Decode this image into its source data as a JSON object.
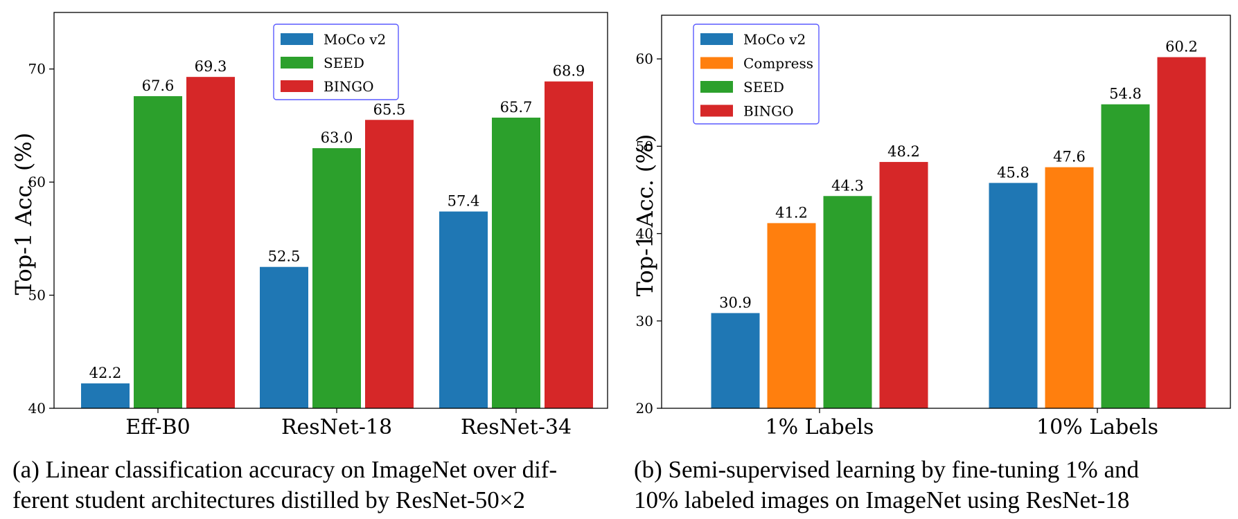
{
  "chart_data": [
    {
      "type": "bar",
      "panel": "a",
      "categories": [
        "Eff-B0",
        "ResNet-18",
        "ResNet-34"
      ],
      "series": [
        {
          "name": "MoCo v2",
          "color": "#1f77b4",
          "values": [
            42.2,
            52.5,
            57.4
          ],
          "labels": [
            "42.2",
            "52.5",
            "57.4"
          ]
        },
        {
          "name": "SEED",
          "color": "#2ca02c",
          "values": [
            67.6,
            63.0,
            65.7
          ],
          "labels": [
            "67.6",
            "63.0",
            "65.7"
          ]
        },
        {
          "name": "BINGO",
          "color": "#d62728",
          "values": [
            69.3,
            65.5,
            68.9
          ],
          "labels": [
            "69.3",
            "65.5",
            "68.9"
          ]
        }
      ],
      "title": "",
      "xlabel": "",
      "ylabel": "Top-1 Acc. (%)",
      "ylim": [
        40,
        75
      ],
      "yticks": [
        40,
        50,
        60,
        70
      ],
      "legend": "top-center",
      "grid": false
    },
    {
      "type": "bar",
      "panel": "b",
      "categories": [
        "1% Labels",
        "10% Labels"
      ],
      "series": [
        {
          "name": "MoCo v2",
          "color": "#1f77b4",
          "values": [
            30.9,
            45.8
          ],
          "labels": [
            "30.9",
            "45.8"
          ]
        },
        {
          "name": "Compress",
          "color": "#ff7f0e",
          "values": [
            41.2,
            47.6
          ],
          "labels": [
            "41.2",
            "47.6"
          ]
        },
        {
          "name": "SEED",
          "color": "#2ca02c",
          "values": [
            44.3,
            54.8
          ],
          "labels": [
            "44.3",
            "54.8"
          ]
        },
        {
          "name": "BINGO",
          "color": "#d62728",
          "values": [
            48.2,
            60.2
          ],
          "labels": [
            "48.2",
            "60.2"
          ]
        }
      ],
      "title": "",
      "xlabel": "",
      "ylabel": "Top-1 Acc. (%)",
      "ylim": [
        20,
        65
      ],
      "yticks": [
        20,
        30,
        40,
        50,
        60
      ],
      "legend": "top-left",
      "grid": false
    }
  ],
  "captions": {
    "a_line1": "(a) Linear classification accuracy on ImageNet over dif-",
    "a_line2": "ferent student architectures distilled by ResNet-50×2",
    "b_line1": "(b) Semi-supervised learning by fine-tuning 1% and",
    "b_line2": "10% labeled images on ImageNet using ResNet-18"
  }
}
